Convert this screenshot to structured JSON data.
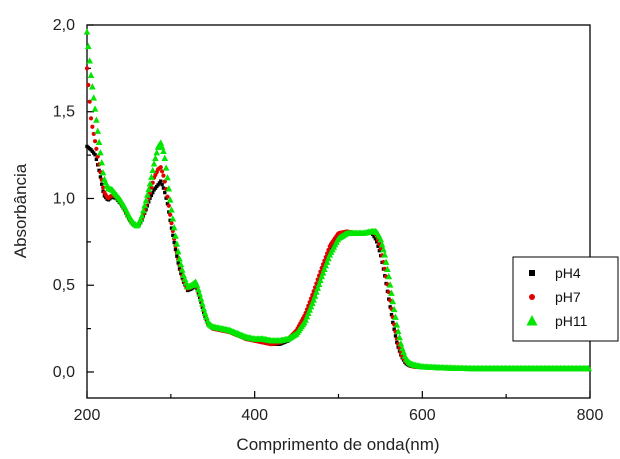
{
  "chart_data": {
    "type": "scatter",
    "title": "",
    "xlabel": "Comprimento de onda(nm)",
    "ylabel": "Absorbância",
    "xlim": [
      200,
      800
    ],
    "ylim": [
      -0.15,
      2.0
    ],
    "x_ticks": [
      200,
      400,
      600,
      800
    ],
    "x_tick_labels": [
      "200",
      "400",
      "600",
      "800"
    ],
    "y_ticks": [
      0.0,
      0.5,
      1.0,
      1.5,
      2.0
    ],
    "y_tick_labels": [
      "0,0",
      "0,5",
      "1,0",
      "1,5",
      "2,0"
    ],
    "grid": false,
    "legend_position": "right",
    "series": [
      {
        "name": "pH4",
        "marker": "square",
        "color": "#000000",
        "x": [
          200,
          205,
          210,
          215,
          220,
          225,
          230,
          235,
          240,
          245,
          250,
          255,
          260,
          265,
          270,
          275,
          280,
          285,
          288,
          292,
          296,
          300,
          305,
          310,
          315,
          320,
          325,
          330,
          335,
          340,
          345,
          350,
          360,
          370,
          380,
          390,
          400,
          410,
          420,
          430,
          440,
          450,
          460,
          470,
          480,
          490,
          500,
          510,
          520,
          530,
          540,
          545,
          550,
          555,
          560,
          565,
          570,
          575,
          580,
          585,
          590,
          600,
          610,
          620,
          640,
          660,
          680,
          700,
          720,
          740,
          760,
          780,
          800
        ],
        "y": [
          1.3,
          1.28,
          1.25,
          1.15,
          1.02,
          0.99,
          1.01,
          1.0,
          0.97,
          0.93,
          0.88,
          0.85,
          0.84,
          0.87,
          0.93,
          1.0,
          1.05,
          1.08,
          1.1,
          1.05,
          0.97,
          0.85,
          0.72,
          0.6,
          0.52,
          0.47,
          0.48,
          0.5,
          0.42,
          0.33,
          0.27,
          0.25,
          0.24,
          0.24,
          0.22,
          0.19,
          0.18,
          0.17,
          0.16,
          0.16,
          0.18,
          0.22,
          0.3,
          0.42,
          0.56,
          0.7,
          0.79,
          0.81,
          0.8,
          0.8,
          0.8,
          0.76,
          0.68,
          0.56,
          0.42,
          0.28,
          0.16,
          0.09,
          0.05,
          0.035,
          0.03,
          0.025,
          0.025,
          0.02,
          0.02,
          0.02,
          0.02,
          0.02,
          0.02,
          0.02,
          0.02,
          0.02,
          0.02
        ]
      },
      {
        "name": "pH7",
        "marker": "circle",
        "color": "#e00000",
        "x": [
          200,
          205,
          210,
          215,
          220,
          225,
          230,
          235,
          240,
          245,
          250,
          255,
          260,
          265,
          270,
          275,
          280,
          285,
          288,
          292,
          296,
          300,
          305,
          310,
          315,
          320,
          325,
          330,
          335,
          340,
          345,
          350,
          360,
          370,
          380,
          390,
          400,
          410,
          420,
          430,
          440,
          450,
          460,
          470,
          480,
          490,
          500,
          510,
          520,
          530,
          540,
          545,
          550,
          555,
          560,
          565,
          570,
          575,
          580,
          585,
          590,
          600,
          610,
          620,
          640,
          660,
          680,
          700,
          720,
          740,
          760,
          780,
          800
        ],
        "y": [
          1.75,
          1.45,
          1.32,
          1.18,
          1.04,
          1.0,
          1.02,
          1.01,
          0.98,
          0.94,
          0.89,
          0.85,
          0.84,
          0.88,
          0.95,
          1.03,
          1.12,
          1.17,
          1.18,
          1.12,
          1.01,
          0.88,
          0.74,
          0.62,
          0.53,
          0.48,
          0.49,
          0.51,
          0.43,
          0.34,
          0.27,
          0.25,
          0.24,
          0.23,
          0.21,
          0.19,
          0.18,
          0.17,
          0.16,
          0.17,
          0.19,
          0.24,
          0.33,
          0.46,
          0.6,
          0.73,
          0.8,
          0.81,
          0.8,
          0.8,
          0.81,
          0.79,
          0.72,
          0.6,
          0.46,
          0.31,
          0.18,
          0.1,
          0.06,
          0.04,
          0.03,
          0.028,
          0.025,
          0.022,
          0.02,
          0.02,
          0.02,
          0.02,
          0.02,
          0.02,
          0.02,
          0.02,
          0.02
        ]
      },
      {
        "name": "pH11",
        "marker": "triangle",
        "color": "#00e600",
        "x": [
          200,
          205,
          210,
          215,
          220,
          225,
          230,
          235,
          240,
          245,
          250,
          255,
          260,
          265,
          270,
          275,
          280,
          285,
          288,
          292,
          296,
          300,
          305,
          310,
          315,
          320,
          325,
          330,
          335,
          340,
          345,
          350,
          360,
          370,
          380,
          390,
          400,
          410,
          420,
          430,
          440,
          450,
          460,
          470,
          480,
          490,
          500,
          510,
          520,
          530,
          540,
          545,
          550,
          555,
          560,
          565,
          570,
          575,
          580,
          585,
          590,
          600,
          610,
          620,
          640,
          660,
          680,
          700,
          720,
          740,
          760,
          780,
          800
        ],
        "y": [
          1.96,
          1.7,
          1.5,
          1.3,
          1.12,
          1.06,
          1.05,
          1.02,
          0.99,
          0.95,
          0.9,
          0.86,
          0.84,
          0.89,
          0.98,
          1.08,
          1.2,
          1.3,
          1.32,
          1.26,
          1.12,
          0.96,
          0.8,
          0.66,
          0.56,
          0.49,
          0.5,
          0.52,
          0.44,
          0.35,
          0.28,
          0.26,
          0.25,
          0.24,
          0.22,
          0.2,
          0.19,
          0.19,
          0.18,
          0.18,
          0.19,
          0.22,
          0.29,
          0.41,
          0.55,
          0.68,
          0.77,
          0.8,
          0.8,
          0.8,
          0.81,
          0.81,
          0.77,
          0.68,
          0.55,
          0.4,
          0.26,
          0.15,
          0.08,
          0.05,
          0.04,
          0.03,
          0.028,
          0.025,
          0.022,
          0.02,
          0.02,
          0.02,
          0.02,
          0.02,
          0.02,
          0.02,
          0.02
        ]
      }
    ]
  }
}
